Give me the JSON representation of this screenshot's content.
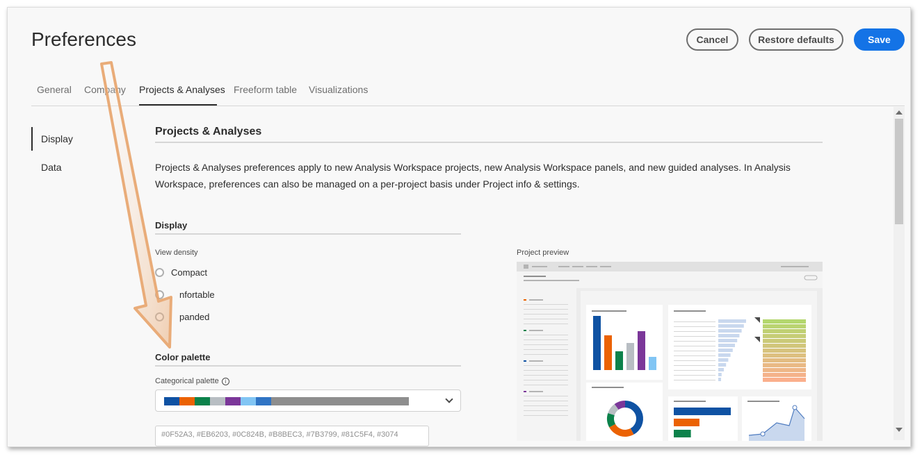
{
  "page": {
    "title": "Preferences"
  },
  "actions": {
    "cancel": "Cancel",
    "restore": "Restore defaults",
    "save": "Save"
  },
  "tabs": [
    "General",
    "Company",
    "Projects & Analyses",
    "Freeform table",
    "Visualizations"
  ],
  "active_tab": "Projects & Analyses",
  "sidebar": {
    "items": [
      "Display",
      "Data"
    ],
    "active": "Display"
  },
  "content": {
    "heading": "Projects & Analyses",
    "description": "Projects & Analyses preferences apply to new Analysis Workspace projects, new Analysis Workspace panels, and new guided analyses. In Analysis Workspace, preferences can also be managed on a per-project basis under Project info & settings.",
    "display": {
      "heading": "Display",
      "view_density_label": "View density",
      "options": [
        "Compact",
        "Comfortable",
        "Expanded"
      ],
      "visible_options": [
        "Compact",
        "nfortable",
        "panded"
      ],
      "selected": "Compact"
    },
    "color": {
      "heading": "Color palette",
      "categorical_label": "Categorical palette",
      "swatches": [
        "#0f52a3",
        "#eb6203",
        "#0c824b",
        "#b8bec3",
        "#7b3799",
        "#81c5f4",
        "#3074c4"
      ],
      "hex_text": "#0F52A3, #EB6203, #0C824B, #B8BEC3, #7B3799, #81C5F4, #3074"
    },
    "preview": {
      "label": "Project preview",
      "bar_values": [
        78,
        50,
        27,
        39,
        56,
        19
      ],
      "bar_colors": [
        "#0f52a3",
        "#eb6203",
        "#0c824b",
        "#b8bec3",
        "#7b3799",
        "#81c5f4"
      ],
      "donut_share": [
        0.42,
        0.25,
        0.13,
        0.1,
        0.1
      ],
      "hbar_values": [
        1.0,
        0.45,
        0.3
      ]
    }
  },
  "colors": {
    "accent": "#1473e6",
    "annotation": "#e8a46c"
  }
}
